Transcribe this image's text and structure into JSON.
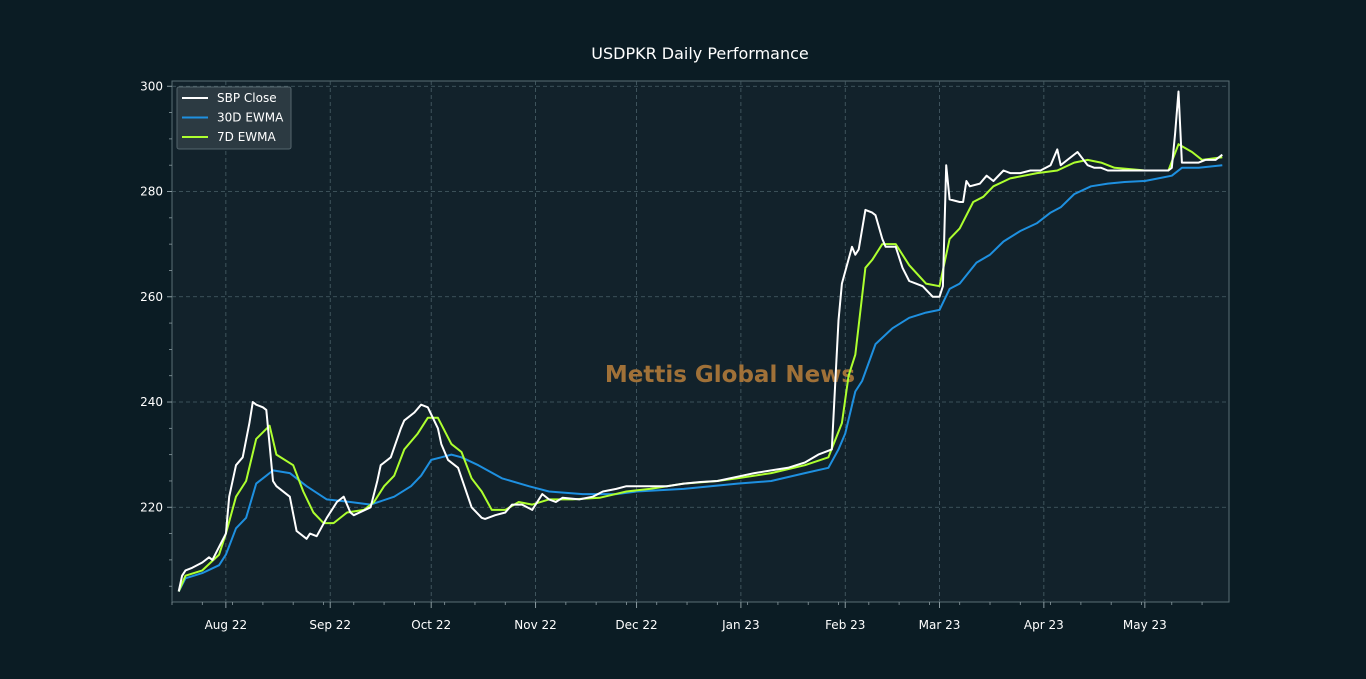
{
  "colors": {
    "background": "#0b1c24",
    "plot_bg": "#12222b",
    "grid": "#4a6068",
    "text": "#ffffff",
    "sbp_close": "#ffffff",
    "ewma_30d": "#1e90e0",
    "ewma_7d": "#adff2f",
    "watermark": "#b07a3a"
  },
  "watermark": "Mettis Global News",
  "chart_data": {
    "type": "line",
    "title": "USDPKR Daily Performance",
    "xlabel": "",
    "ylabel": "",
    "ylim": [
      202,
      301
    ],
    "yticks": [
      220,
      240,
      260,
      280,
      300
    ],
    "xlim": [
      "2022-07-16",
      "2023-05-26"
    ],
    "xticks": [
      {
        "date": "2022-08-01",
        "label": "Aug 22"
      },
      {
        "date": "2022-09-01",
        "label": "Sep 22"
      },
      {
        "date": "2022-10-01",
        "label": "Oct 22"
      },
      {
        "date": "2022-11-01",
        "label": "Nov 22"
      },
      {
        "date": "2022-12-01",
        "label": "Dec 22"
      },
      {
        "date": "2023-01-01",
        "label": "Jan 23"
      },
      {
        "date": "2023-02-01",
        "label": "Feb 23"
      },
      {
        "date": "2023-03-01",
        "label": "Mar 23"
      },
      {
        "date": "2023-04-01",
        "label": "Apr 23"
      },
      {
        "date": "2023-05-01",
        "label": "May 23"
      }
    ],
    "grid": true,
    "legend_position": "top-left",
    "series": [
      {
        "name": "SBP Close",
        "color": "#ffffff",
        "points": [
          [
            "2022-07-18",
            204
          ],
          [
            "2022-07-19",
            207
          ],
          [
            "2022-07-20",
            208
          ],
          [
            "2022-07-22",
            208.5
          ],
          [
            "2022-07-25",
            209.5
          ],
          [
            "2022-07-27",
            210.5
          ],
          [
            "2022-07-28",
            210
          ],
          [
            "2022-08-01",
            215
          ],
          [
            "2022-08-02",
            222
          ],
          [
            "2022-08-04",
            228
          ],
          [
            "2022-08-06",
            229.5
          ],
          [
            "2022-08-08",
            236
          ],
          [
            "2022-08-09",
            240
          ],
          [
            "2022-08-10",
            239.5
          ],
          [
            "2022-08-12",
            239
          ],
          [
            "2022-08-13",
            238.5
          ],
          [
            "2022-08-15",
            225
          ],
          [
            "2022-08-16",
            224
          ],
          [
            "2022-08-20",
            222
          ],
          [
            "2022-08-22",
            215.5
          ],
          [
            "2022-08-25",
            214
          ],
          [
            "2022-08-26",
            215
          ],
          [
            "2022-08-28",
            214.5
          ],
          [
            "2022-08-31",
            218
          ],
          [
            "2022-09-03",
            221
          ],
          [
            "2022-09-05",
            222
          ],
          [
            "2022-09-07",
            219
          ],
          [
            "2022-09-08",
            218.5
          ],
          [
            "2022-09-13",
            220
          ],
          [
            "2022-09-15",
            225
          ],
          [
            "2022-09-16",
            228
          ],
          [
            "2022-09-19",
            229.5
          ],
          [
            "2022-09-22",
            235
          ],
          [
            "2022-09-23",
            236.5
          ],
          [
            "2022-09-26",
            238
          ],
          [
            "2022-09-28",
            239.5
          ],
          [
            "2022-09-30",
            239
          ],
          [
            "2022-10-03",
            235
          ],
          [
            "2022-10-04",
            232
          ],
          [
            "2022-10-06",
            229
          ],
          [
            "2022-10-09",
            227.5
          ],
          [
            "2022-10-13",
            220
          ],
          [
            "2022-10-16",
            218
          ],
          [
            "2022-10-17",
            217.8
          ],
          [
            "2022-10-20",
            218.5
          ],
          [
            "2022-10-23",
            219
          ],
          [
            "2022-10-25",
            220.5
          ],
          [
            "2022-10-28",
            220.5
          ],
          [
            "2022-10-31",
            219.5
          ],
          [
            "2022-11-03",
            222.5
          ],
          [
            "2022-11-05",
            221.5
          ],
          [
            "2022-11-07",
            221
          ],
          [
            "2022-11-09",
            221.8
          ],
          [
            "2022-11-14",
            221.5
          ],
          [
            "2022-11-18",
            222
          ],
          [
            "2022-11-21",
            223
          ],
          [
            "2022-11-25",
            223.5
          ],
          [
            "2022-11-28",
            224
          ],
          [
            "2022-12-05",
            224
          ],
          [
            "2022-12-10",
            224
          ],
          [
            "2022-12-15",
            224.5
          ],
          [
            "2022-12-20",
            224.8
          ],
          [
            "2022-12-25",
            225
          ],
          [
            "2022-12-31",
            225.8
          ],
          [
            "2023-01-05",
            226.5
          ],
          [
            "2023-01-10",
            227
          ],
          [
            "2023-01-15",
            227.5
          ],
          [
            "2023-01-20",
            228.5
          ],
          [
            "2023-01-24",
            230
          ],
          [
            "2023-01-28",
            231
          ],
          [
            "2023-01-30",
            255.5
          ],
          [
            "2023-01-31",
            262.5
          ],
          [
            "2023-02-03",
            269.5
          ],
          [
            "2023-02-04",
            268
          ],
          [
            "2023-02-05",
            269
          ],
          [
            "2023-02-07",
            276.5
          ],
          [
            "2023-02-09",
            276
          ],
          [
            "2023-02-10",
            275.5
          ],
          [
            "2023-02-12",
            271
          ],
          [
            "2023-02-13",
            269.5
          ],
          [
            "2023-02-16",
            269.5
          ],
          [
            "2023-02-18",
            265.5
          ],
          [
            "2023-02-20",
            263
          ],
          [
            "2023-02-22",
            262.5
          ],
          [
            "2023-02-24",
            262
          ],
          [
            "2023-02-27",
            260
          ],
          [
            "2023-03-01",
            260
          ],
          [
            "2023-03-02",
            262
          ],
          [
            "2023-03-03",
            285
          ],
          [
            "2023-03-04",
            278.5
          ],
          [
            "2023-03-07",
            278
          ],
          [
            "2023-03-08",
            278
          ],
          [
            "2023-03-09",
            282
          ],
          [
            "2023-03-10",
            281
          ],
          [
            "2023-03-13",
            281.5
          ],
          [
            "2023-03-15",
            283
          ],
          [
            "2023-03-17",
            282
          ],
          [
            "2023-03-20",
            284
          ],
          [
            "2023-03-22",
            283.5
          ],
          [
            "2023-03-25",
            283.5
          ],
          [
            "2023-03-28",
            284
          ],
          [
            "2023-03-31",
            284
          ],
          [
            "2023-04-03",
            285
          ],
          [
            "2023-04-05",
            288
          ],
          [
            "2023-04-06",
            285
          ],
          [
            "2023-04-08",
            286
          ],
          [
            "2023-04-11",
            287.5
          ],
          [
            "2023-04-14",
            285
          ],
          [
            "2023-04-16",
            284.5
          ],
          [
            "2023-04-18",
            284.5
          ],
          [
            "2023-04-20",
            284
          ],
          [
            "2023-04-25",
            284
          ],
          [
            "2023-04-30",
            284
          ],
          [
            "2023-05-05",
            284
          ],
          [
            "2023-05-08",
            284
          ],
          [
            "2023-05-09",
            284.5
          ],
          [
            "2023-05-10",
            291
          ],
          [
            "2023-05-11",
            299
          ],
          [
            "2023-05-12",
            285.5
          ],
          [
            "2023-05-15",
            285.5
          ],
          [
            "2023-05-17",
            285.5
          ],
          [
            "2023-05-19",
            286
          ],
          [
            "2023-05-22",
            286
          ],
          [
            "2023-05-24",
            287
          ]
        ]
      },
      {
        "name": "30D EWMA",
        "color": "#1e90e0",
        "points": [
          [
            "2022-07-18",
            204
          ],
          [
            "2022-07-20",
            206.5
          ],
          [
            "2022-07-25",
            207.5
          ],
          [
            "2022-07-30",
            209
          ],
          [
            "2022-08-01",
            211
          ],
          [
            "2022-08-04",
            216
          ],
          [
            "2022-08-07",
            218
          ],
          [
            "2022-08-10",
            224.5
          ],
          [
            "2022-08-13",
            226
          ],
          [
            "2022-08-15",
            227
          ],
          [
            "2022-08-20",
            226.5
          ],
          [
            "2022-08-25",
            224
          ],
          [
            "2022-08-31",
            221.5
          ],
          [
            "2022-09-07",
            221
          ],
          [
            "2022-09-13",
            220.5
          ],
          [
            "2022-09-20",
            222
          ],
          [
            "2022-09-25",
            224
          ],
          [
            "2022-09-28",
            226
          ],
          [
            "2022-10-01",
            229
          ],
          [
            "2022-10-04",
            229.5
          ],
          [
            "2022-10-07",
            230
          ],
          [
            "2022-10-10",
            229.5
          ],
          [
            "2022-10-15",
            228
          ],
          [
            "2022-10-22",
            225.5
          ],
          [
            "2022-10-30",
            224
          ],
          [
            "2022-11-05",
            223
          ],
          [
            "2022-11-15",
            222.5
          ],
          [
            "2022-11-25",
            222.5
          ],
          [
            "2022-12-01",
            223
          ],
          [
            "2022-12-15",
            223.5
          ],
          [
            "2022-12-31",
            224.5
          ],
          [
            "2023-01-10",
            225
          ],
          [
            "2023-01-20",
            226.5
          ],
          [
            "2023-01-27",
            227.5
          ],
          [
            "2023-01-30",
            231
          ],
          [
            "2023-02-01",
            234
          ],
          [
            "2023-02-04",
            242
          ],
          [
            "2023-02-06",
            244
          ],
          [
            "2023-02-10",
            251
          ],
          [
            "2023-02-15",
            254
          ],
          [
            "2023-02-20",
            256
          ],
          [
            "2023-02-25",
            257
          ],
          [
            "2023-03-01",
            257.5
          ],
          [
            "2023-03-04",
            261.5
          ],
          [
            "2023-03-07",
            262.5
          ],
          [
            "2023-03-12",
            266.5
          ],
          [
            "2023-03-16",
            268
          ],
          [
            "2023-03-20",
            270.5
          ],
          [
            "2023-03-25",
            272.5
          ],
          [
            "2023-03-30",
            274
          ],
          [
            "2023-04-03",
            276
          ],
          [
            "2023-04-06",
            277
          ],
          [
            "2023-04-10",
            279.5
          ],
          [
            "2023-04-15",
            281
          ],
          [
            "2023-04-20",
            281.5
          ],
          [
            "2023-04-25",
            281.8
          ],
          [
            "2023-05-01",
            282
          ],
          [
            "2023-05-05",
            282.5
          ],
          [
            "2023-05-09",
            283
          ],
          [
            "2023-05-12",
            284.5
          ],
          [
            "2023-05-17",
            284.5
          ],
          [
            "2023-05-24",
            285
          ]
        ]
      },
      {
        "name": "7D EWMA",
        "color": "#adff2f",
        "points": [
          [
            "2022-07-18",
            204
          ],
          [
            "2022-07-20",
            207
          ],
          [
            "2022-07-25",
            208
          ],
          [
            "2022-07-30",
            211
          ],
          [
            "2022-08-01",
            215
          ],
          [
            "2022-08-04",
            222
          ],
          [
            "2022-08-07",
            225
          ],
          [
            "2022-08-10",
            233
          ],
          [
            "2022-08-14",
            235.5
          ],
          [
            "2022-08-16",
            230
          ],
          [
            "2022-08-21",
            228
          ],
          [
            "2022-08-24",
            223
          ],
          [
            "2022-08-27",
            219
          ],
          [
            "2022-08-30",
            217
          ],
          [
            "2022-09-02",
            217
          ],
          [
            "2022-09-06",
            219
          ],
          [
            "2022-09-11",
            219.5
          ],
          [
            "2022-09-14",
            221
          ],
          [
            "2022-09-17",
            224
          ],
          [
            "2022-09-20",
            226
          ],
          [
            "2022-09-23",
            231
          ],
          [
            "2022-09-27",
            234
          ],
          [
            "2022-09-30",
            237
          ],
          [
            "2022-10-03",
            237
          ],
          [
            "2022-10-07",
            232
          ],
          [
            "2022-10-10",
            230.5
          ],
          [
            "2022-10-13",
            225.5
          ],
          [
            "2022-10-16",
            223
          ],
          [
            "2022-10-19",
            219.5
          ],
          [
            "2022-10-23",
            219.5
          ],
          [
            "2022-10-27",
            221
          ],
          [
            "2022-10-31",
            220.5
          ],
          [
            "2022-11-05",
            221.5
          ],
          [
            "2022-11-12",
            221.5
          ],
          [
            "2022-11-20",
            221.8
          ],
          [
            "2022-11-28",
            223
          ],
          [
            "2022-12-05",
            223.5
          ],
          [
            "2022-12-15",
            224.5
          ],
          [
            "2022-12-25",
            225
          ],
          [
            "2022-12-31",
            225.5
          ],
          [
            "2023-01-10",
            226.5
          ],
          [
            "2023-01-20",
            228
          ],
          [
            "2023-01-27",
            229.5
          ],
          [
            "2023-01-31",
            236
          ],
          [
            "2023-02-02",
            245
          ],
          [
            "2023-02-04",
            249
          ],
          [
            "2023-02-07",
            265.5
          ],
          [
            "2023-02-09",
            267
          ],
          [
            "2023-02-12",
            270
          ],
          [
            "2023-02-16",
            270
          ],
          [
            "2023-02-20",
            266
          ],
          [
            "2023-02-25",
            262.5
          ],
          [
            "2023-03-01",
            262
          ],
          [
            "2023-03-04",
            271
          ],
          [
            "2023-03-07",
            273
          ],
          [
            "2023-03-11",
            278
          ],
          [
            "2023-03-14",
            279
          ],
          [
            "2023-03-17",
            281
          ],
          [
            "2023-03-22",
            282.5
          ],
          [
            "2023-03-30",
            283.5
          ],
          [
            "2023-04-05",
            284
          ],
          [
            "2023-04-10",
            285.5
          ],
          [
            "2023-04-14",
            286
          ],
          [
            "2023-04-18",
            285.5
          ],
          [
            "2023-04-22",
            284.5
          ],
          [
            "2023-05-01",
            284
          ],
          [
            "2023-05-08",
            284
          ],
          [
            "2023-05-11",
            289
          ],
          [
            "2023-05-15",
            287.5
          ],
          [
            "2023-05-18",
            286
          ],
          [
            "2023-05-24",
            286.5
          ]
        ]
      }
    ]
  }
}
